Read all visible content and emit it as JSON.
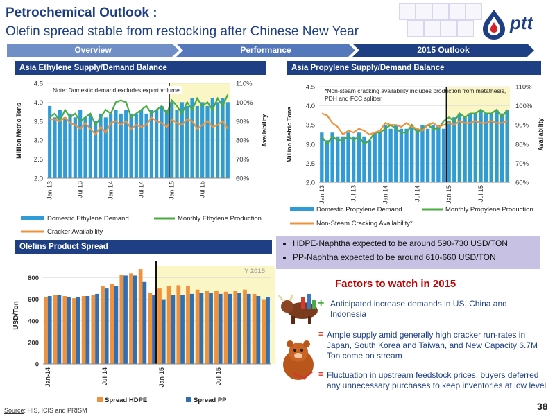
{
  "header": {
    "title": "Petrochemical Outlook :",
    "subtitle": "Olefin spread stable  from restocking after Chinese New Year",
    "logo_text": "ptt"
  },
  "nav": {
    "tabs": [
      {
        "label": "Overview",
        "color": "#6f8fc6"
      },
      {
        "label": "Performance",
        "color": "#5577bb"
      },
      {
        "label": "2015 Outlook",
        "color": "#1f3f84"
      }
    ]
  },
  "sections": {
    "ethylene_title": "Asia Ethylene Supply/Demand Balance",
    "propylene_title": "Asia Propylene Supply/Demand Balance",
    "spread_title": "Olefins Product Spread"
  },
  "notes": {
    "bullets": [
      "HDPE-Naphtha expected to be around 590-730 USD/TON",
      "PP-Naphtha expected to be around 610-660 USD/TON"
    ]
  },
  "factors": {
    "title": "Factors to watch in 2015",
    "positive_sign": "+",
    "positive": "Anticipated increase demands in US, China and Indonesia",
    "negative_sign": "=",
    "negatives": [
      "Ample supply amid generally high cracker run-rates in Japan, South Korea and Taiwan, and New Capacity 6.7M Ton come on stream",
      "Fluctuation in upstream feedstock prices, buyers deferred any unnecessary purchases to keep inventories at low level"
    ]
  },
  "footer": {
    "source_prefix": "Source",
    "source_text": ": HIS, ICIS and PRISM",
    "page_number": "38"
  },
  "chart_data": [
    {
      "id": "ethylene",
      "type": "bar",
      "title": "",
      "note": "Note: Domestic demand excludes export volume",
      "ylabel": "Million Metric Tons",
      "y2label": "Availability",
      "ylim": [
        2.0,
        4.5
      ],
      "yticks": [
        "2.0",
        "2.5",
        "3.0",
        "3.5",
        "4.0",
        "4.5"
      ],
      "y2lim": [
        60,
        110
      ],
      "y2ticks": [
        "60%",
        "70%",
        "80%",
        "90%",
        "100%",
        "110%"
      ],
      "xticks": [
        "Jan 13",
        "Jul 13",
        "Jan 14",
        "Jul 14",
        "Jan 15",
        "Jul 15"
      ],
      "highlight_from_index": 24,
      "divider_index": 24,
      "series": [
        {
          "name": "Domestic Ethylene Demand",
          "kind": "bar",
          "color": "#2f9bd7",
          "values": [
            3.9,
            3.6,
            3.8,
            3.6,
            3.7,
            3.6,
            3.8,
            3.6,
            3.7,
            3.5,
            3.7,
            3.6,
            3.7,
            3.8,
            3.7,
            3.8,
            3.7,
            3.7,
            3.8,
            3.7,
            3.8,
            3.8,
            3.9,
            3.8,
            4.0,
            3.8,
            4.0,
            3.9,
            4.1,
            3.9,
            4.0,
            3.9,
            4.1,
            4.0,
            4.1,
            4.0
          ]
        },
        {
          "name": "Monthly Ethylene Production",
          "kind": "line",
          "axis": "left",
          "color": "#4aab43",
          "values": [
            3.6,
            3.7,
            3.5,
            3.8,
            3.6,
            3.7,
            3.5,
            3.6,
            3.7,
            3.4,
            3.6,
            3.8,
            3.7,
            4.0,
            4.05,
            4.0,
            3.6,
            3.7,
            3.8,
            3.9,
            3.7,
            3.8,
            3.9,
            3.7,
            4.05,
            3.9,
            3.7,
            4.0,
            3.8,
            4.1,
            3.9,
            4.0,
            3.8,
            4.1,
            3.9,
            4.2
          ]
        },
        {
          "name": "Cracker Availability",
          "kind": "line",
          "axis": "right",
          "color": "#f0923c",
          "values": [
            91,
            91,
            90,
            92,
            89,
            88,
            86,
            89,
            86,
            83,
            87,
            84,
            89,
            90,
            88,
            90,
            86,
            88,
            87,
            88,
            92,
            90,
            89,
            87,
            91,
            89,
            88,
            91,
            90,
            86,
            88,
            90,
            87,
            88,
            90,
            86
          ]
        }
      ]
    },
    {
      "id": "propylene",
      "type": "bar",
      "title": "",
      "note": "*Non-steam cracking availability includes production from metathesis, PDH and FCC splitter",
      "ylabel": "Million Metric Tons",
      "y2label": "Availability",
      "ylim": [
        2.0,
        4.5
      ],
      "yticks": [
        "2.0",
        "2.5",
        "3.0",
        "3.5",
        "4.0",
        "4.5"
      ],
      "y2lim": [
        60,
        110
      ],
      "y2ticks": [
        "60%",
        "70%",
        "80%",
        "90%",
        "100%",
        "110%"
      ],
      "xticks": [
        "Jan 13",
        "Jul 13",
        "Jan 14",
        "Jul 14",
        "Jan 15",
        "Jul 15"
      ],
      "highlight_from_index": 24,
      "divider_index": 24,
      "series": [
        {
          "name": "Domestic Propylene Demand",
          "kind": "bar",
          "color": "#2f9bd7",
          "values": [
            3.3,
            3.1,
            3.3,
            3.2,
            3.2,
            3.3,
            3.2,
            3.3,
            3.2,
            3.1,
            3.3,
            3.3,
            3.5,
            3.4,
            3.5,
            3.4,
            3.4,
            3.5,
            3.4,
            3.5,
            3.4,
            3.5,
            3.5,
            3.4,
            3.6,
            3.7,
            3.8,
            3.7,
            3.8,
            3.8,
            3.9,
            3.8,
            3.8,
            3.9,
            3.8,
            3.9
          ]
        },
        {
          "name": "Monthly Propylene Production",
          "kind": "line",
          "axis": "left",
          "color": "#4aab43",
          "values": [
            3.2,
            3.0,
            3.2,
            3.1,
            3.1,
            3.2,
            3.1,
            3.2,
            3.0,
            3.1,
            3.3,
            3.3,
            3.4,
            3.5,
            3.4,
            3.3,
            3.3,
            3.5,
            3.3,
            3.4,
            3.5,
            3.4,
            3.4,
            3.6,
            3.7,
            3.6,
            3.8,
            3.7,
            3.8,
            3.8,
            3.9,
            3.8,
            3.8,
            3.9,
            3.7,
            3.9
          ]
        },
        {
          "name": "Non-Steam Cracking Availability*",
          "kind": "line",
          "axis": "right",
          "color": "#f0923c",
          "values": [
            96,
            95,
            91,
            89,
            85,
            87,
            86,
            88,
            87,
            85,
            86,
            87,
            91,
            90,
            90,
            89,
            91,
            89,
            88,
            87,
            90,
            91,
            89,
            90,
            91,
            90,
            92,
            91,
            91,
            92,
            91,
            91,
            92,
            91,
            91,
            92
          ]
        }
      ]
    },
    {
      "id": "spread",
      "type": "bar",
      "title": "",
      "band_label": "Y 2015",
      "ylabel": "USD/Ton",
      "ylim": [
        0,
        900
      ],
      "yticks": [
        "0",
        "200",
        "400",
        "600",
        "800"
      ],
      "xticks": [
        "Jan-14",
        "Jul-14",
        "Jan-15",
        "Jul-15"
      ],
      "highlight_from_index": 12,
      "divider_index": 12,
      "series": [
        {
          "name": "Spread HDPE",
          "color": "#f0923c",
          "values": [
            620,
            640,
            630,
            610,
            630,
            640,
            720,
            740,
            830,
            840,
            880,
            660,
            700,
            720,
            730,
            720,
            690,
            680,
            680,
            670,
            680,
            690,
            650,
            600
          ]
        },
        {
          "name": "Spread PP",
          "color": "#2f6fb5",
          "values": [
            630,
            640,
            620,
            620,
            630,
            650,
            700,
            720,
            820,
            820,
            760,
            640,
            600,
            640,
            640,
            650,
            660,
            660,
            650,
            650,
            660,
            650,
            630,
            620
          ]
        }
      ]
    }
  ]
}
